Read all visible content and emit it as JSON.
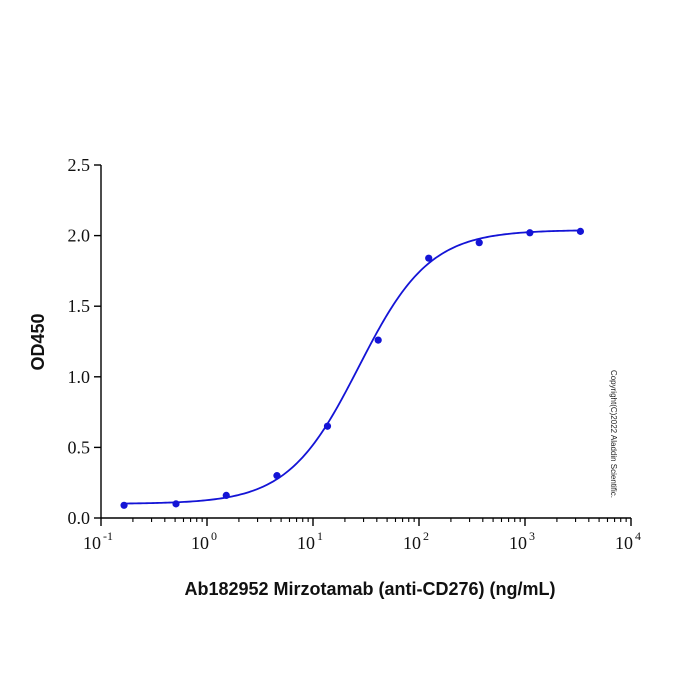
{
  "chart_data": {
    "type": "scatter",
    "title": "",
    "xlabel": "Ab182952 Mirzotamab (anti-CD276) (ng/mL)",
    "ylabel": "OD450",
    "xscale": "log10",
    "xlim": [
      0.1,
      10000
    ],
    "ylim": [
      0,
      2.5
    ],
    "x_ticks": [
      {
        "base": "10",
        "exp": "-1"
      },
      {
        "base": "10",
        "exp": "0"
      },
      {
        "base": "10",
        "exp": "1"
      },
      {
        "base": "10",
        "exp": "2"
      },
      {
        "base": "10",
        "exp": "3"
      },
      {
        "base": "10",
        "exp": "4"
      }
    ],
    "y_ticks": [
      "0.0",
      "0.5",
      "1.0",
      "1.5",
      "2.0",
      "2.5"
    ],
    "series": [
      {
        "name": "Ab182952 Mirzotamab",
        "color": "#1414d6",
        "points": [
          {
            "x": 0.165,
            "y": 0.09
          },
          {
            "x": 0.51,
            "y": 0.1
          },
          {
            "x": 1.52,
            "y": 0.16
          },
          {
            "x": 4.57,
            "y": 0.3
          },
          {
            "x": 13.7,
            "y": 0.65
          },
          {
            "x": 41.2,
            "y": 1.26
          },
          {
            "x": 123.5,
            "y": 1.84
          },
          {
            "x": 370,
            "y": 1.95
          },
          {
            "x": 1111,
            "y": 2.02
          },
          {
            "x": 3333,
            "y": 2.03
          }
        ],
        "fit": {
          "model": "4PL",
          "bottom": 0.1,
          "top": 2.04,
          "ec50": 27,
          "hill": 1.3
        }
      }
    ],
    "annotation": "Copyright(C)2022 Aladdin Scientific."
  }
}
